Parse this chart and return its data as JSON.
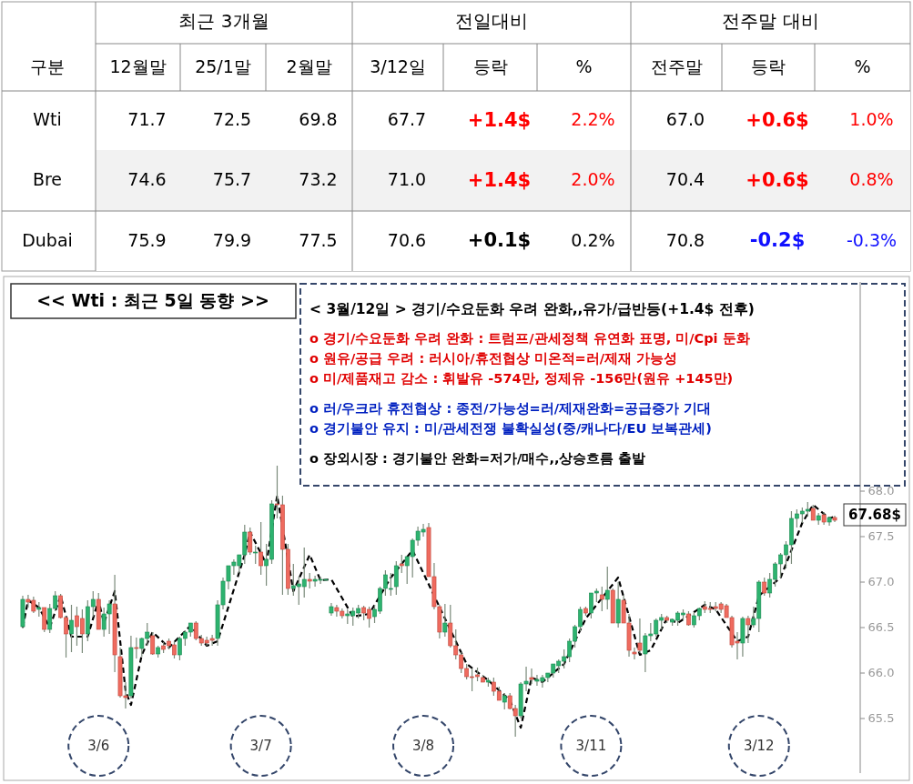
{
  "chart_data": [
    {
      "type": "heatmap",
      "annotations": [
        "구분",
        "최근 3개월",
        "전일대비",
        "전주말 대비"
      ],
      "categories": [
        "12월말",
        "25/1말",
        "2월말",
        "3/12일",
        "등락",
        "%",
        "전주말",
        "등락",
        "%"
      ],
      "y_categories": [
        "Wti",
        "Bre",
        "Dubai"
      ],
      "cells": [
        [
          71.7,
          72.5,
          69.8,
          67.7,
          1.4,
          2.2,
          67.0,
          0.6,
          1.0
        ],
        [
          74.6,
          75.7,
          73.2,
          71.0,
          1.4,
          2.0,
          70.4,
          0.6,
          0.8
        ],
        [
          75.9,
          79.9,
          77.5,
          70.6,
          0.1,
          0.2,
          70.8,
          -0.2,
          -0.3
        ]
      ],
      "cell_labels": [
        [
          "71.7",
          "72.5",
          "69.8",
          "67.7",
          "+1.4$",
          "2.2%",
          "67.0",
          "+0.6$",
          "1.0%"
        ],
        [
          "74.6",
          "75.7",
          "73.2",
          "71.0",
          "+1.4$",
          "2.0%",
          "70.4",
          "+0.6$",
          "0.8%"
        ],
        [
          "75.9",
          "79.9",
          "77.5",
          "70.6",
          "+0.1$",
          "0.2%",
          "70.8",
          "-0.2$",
          "-0.3%"
        ]
      ]
    },
    {
      "type": "candlestick",
      "title": "<< Wti : 최근 5일 동향 >>",
      "annotations": [
        "< 3월/12일 > 경기/수요둔화 우려 완화,,유가/급반등(+1.4$ 전후)",
        "o 경기/수요둔화 우려 완화 : 트럼프/관세정책 유연화 표명, 미/Cpi 둔화",
        "o 원유/공급 우려 : 러시아/휴전협상 미온적=러/제재 가능성",
        "o 미/제품재고 감소 : 휘발유 -574만, 정제유 -156만(원유 +145만)",
        "o 러/우크라 휴전협상 : 종전/가능성=러/제재완화=공급증가 기대",
        "o 경기불안 유지 : 미/관세전쟁 불확실성(중/캐나다/EU 보복관세)",
        "o 장외시장 : 경기불안 완화=저가/매수,,상승흐름 출발",
        "67.68$"
      ],
      "categories": [
        null,
        null,
        null,
        null,
        null,
        null,
        null,
        null,
        null,
        null,
        null,
        null,
        null,
        null,
        "3/6",
        null,
        null,
        null,
        null,
        null,
        null,
        null,
        null,
        null,
        null,
        null,
        null,
        null,
        null,
        null,
        null,
        null,
        null,
        null,
        null,
        null,
        null,
        null,
        null,
        null,
        null,
        null,
        null,
        null,
        "3/7",
        null,
        null,
        null,
        null,
        null,
        null,
        null,
        null,
        null,
        null,
        null,
        null,
        null,
        null,
        null,
        null,
        null,
        null,
        null,
        null,
        null,
        null,
        null,
        null,
        null,
        null,
        null,
        null,
        null,
        "3/8",
        null,
        null,
        null,
        null,
        null,
        null,
        null,
        null,
        null,
        null,
        null,
        null,
        null,
        null,
        null,
        null,
        null,
        null,
        null,
        null,
        null,
        null,
        null,
        null,
        null,
        null,
        null,
        null,
        null,
        null,
        "3/11",
        null,
        null,
        null,
        null,
        null,
        null,
        null,
        null,
        null,
        null,
        null,
        null,
        null,
        null,
        null,
        null,
        null,
        null,
        null,
        null,
        null,
        null,
        null,
        null,
        null,
        null,
        null,
        null,
        null,
        null,
        "3/12",
        null,
        null,
        null,
        null,
        null,
        null,
        null,
        null,
        null,
        null,
        null,
        null,
        null,
        null
      ],
      "ohlc": [
        [
          66.51,
          66.85,
          66.49,
          66.81
        ],
        [
          66.81,
          66.86,
          66.72,
          66.78
        ],
        [
          66.8,
          66.84,
          66.66,
          66.68
        ],
        [
          66.7,
          66.78,
          66.62,
          66.72
        ],
        [
          66.72,
          66.72,
          66.45,
          66.48
        ],
        [
          66.48,
          66.76,
          66.44,
          66.71
        ],
        [
          66.71,
          66.9,
          66.68,
          66.85
        ],
        [
          66.85,
          66.87,
          66.6,
          66.61
        ],
        [
          66.61,
          66.63,
          66.17,
          66.43
        ],
        [
          66.43,
          66.75,
          66.23,
          66.58
        ],
        [
          66.63,
          66.73,
          66.3,
          66.51
        ],
        [
          66.6,
          66.7,
          66.22,
          66.43
        ],
        [
          66.43,
          66.8,
          66.35,
          66.73
        ],
        [
          66.73,
          66.9,
          66.62,
          66.81
        ],
        [
          66.81,
          66.88,
          66.48,
          66.48
        ],
        [
          66.48,
          66.72,
          66.4,
          66.65
        ],
        [
          66.65,
          66.8,
          66.43,
          66.76
        ],
        [
          66.76,
          67.08,
          66.01,
          66.2
        ],
        [
          66.18,
          66.28,
          65.73,
          65.75
        ],
        [
          65.75,
          65.9,
          65.61,
          65.73
        ],
        [
          65.75,
          66.41,
          65.72,
          66.28
        ],
        [
          66.28,
          66.39,
          66.16,
          66.27
        ],
        [
          66.27,
          66.39,
          66.18,
          66.38
        ],
        [
          66.38,
          66.55,
          66.3,
          66.45
        ],
        [
          66.41,
          66.45,
          66.2,
          66.21
        ],
        [
          66.21,
          66.3,
          66.17,
          66.28
        ],
        [
          66.3,
          66.34,
          66.22,
          66.26
        ],
        [
          66.35,
          66.38,
          66.26,
          66.3
        ],
        [
          66.31,
          66.35,
          66.16,
          66.2
        ],
        [
          66.2,
          66.4,
          66.14,
          66.38
        ],
        [
          66.38,
          66.47,
          66.3,
          66.45
        ],
        [
          66.45,
          66.55,
          66.4,
          66.55
        ],
        [
          66.55,
          66.57,
          66.36,
          66.38
        ],
        [
          66.38,
          66.42,
          66.3,
          66.33
        ],
        [
          66.36,
          66.4,
          66.3,
          66.33
        ],
        [
          66.38,
          66.42,
          66.3,
          66.36
        ],
        [
          66.38,
          66.8,
          66.3,
          66.75
        ],
        [
          66.75,
          67.05,
          66.7,
          67.01
        ],
        [
          67.01,
          67.18,
          66.92,
          67.18
        ],
        [
          67.18,
          67.25,
          67.08,
          67.22
        ],
        [
          67.18,
          67.3,
          67.1,
          67.3
        ],
        [
          67.3,
          67.63,
          67.2,
          67.55
        ],
        [
          67.55,
          67.6,
          67.3,
          67.33
        ],
        [
          67.33,
          67.4,
          67.2,
          67.33
        ],
        [
          67.33,
          67.66,
          67.08,
          67.18
        ],
        [
          67.18,
          67.42,
          66.96,
          67.25
        ],
        [
          67.25,
          67.9,
          67.2,
          67.86
        ],
        [
          67.86,
          68.28,
          67.7,
          67.85
        ],
        [
          67.85,
          67.95,
          66.86,
          67.36
        ],
        [
          67.36,
          67.42,
          66.86,
          66.93
        ],
        [
          66.93,
          67.2,
          66.85,
          66.96
        ],
        [
          66.95,
          67.06,
          66.75,
          66.98
        ],
        [
          66.95,
          67.38,
          66.83,
          67.03
        ],
        [
          67.03,
          67.1,
          66.93,
          67.01
        ],
        [
          67.01,
          67.07,
          66.95,
          67.03
        ],
        [
          67.03,
          67.06,
          66.98,
          67.03
        ],
        [
          67.03,
          67.04,
          67.02,
          67.03
        ],
        [
          66.66,
          66.77,
          66.63,
          66.73
        ],
        [
          66.72,
          66.75,
          66.62,
          66.68
        ],
        [
          66.68,
          66.71,
          66.6,
          66.63
        ],
        [
          66.63,
          66.7,
          66.54,
          66.65
        ],
        [
          66.63,
          66.72,
          66.52,
          66.68
        ],
        [
          66.66,
          66.75,
          66.6,
          66.71
        ],
        [
          66.72,
          66.74,
          66.58,
          66.66
        ],
        [
          66.7,
          66.73,
          66.5,
          66.6
        ],
        [
          66.62,
          66.75,
          66.55,
          66.7
        ],
        [
          66.68,
          66.95,
          66.65,
          66.93
        ],
        [
          66.93,
          67.13,
          66.85,
          67.08
        ],
        [
          66.93,
          67.1,
          66.85,
          66.93
        ],
        [
          66.95,
          67.23,
          66.86,
          67.18
        ],
        [
          67.2,
          67.3,
          67.1,
          67.18
        ],
        [
          67.18,
          67.28,
          66.98,
          67.28
        ],
        [
          67.28,
          67.48,
          67.05,
          67.46
        ],
        [
          67.46,
          67.61,
          67.4,
          67.56
        ],
        [
          67.55,
          67.64,
          67.5,
          67.58
        ],
        [
          67.6,
          67.65,
          67.06,
          67.06
        ],
        [
          67.06,
          67.21,
          66.7,
          66.73
        ],
        [
          66.73,
          66.75,
          66.38,
          66.45
        ],
        [
          66.45,
          66.76,
          66.4,
          66.55
        ],
        [
          66.55,
          66.75,
          66.28,
          66.3
        ],
        [
          66.3,
          66.48,
          66.15,
          66.2
        ],
        [
          66.2,
          66.23,
          66.0,
          66.05
        ],
        [
          66.05,
          66.1,
          65.93,
          65.96
        ],
        [
          65.96,
          66.05,
          65.8,
          65.95
        ],
        [
          65.98,
          66.06,
          65.91,
          65.96
        ],
        [
          65.95,
          65.98,
          65.9,
          65.9
        ],
        [
          65.9,
          65.95,
          65.85,
          65.92
        ],
        [
          65.9,
          65.95,
          65.75,
          65.8
        ],
        [
          65.8,
          65.85,
          65.7,
          65.7
        ],
        [
          65.68,
          65.78,
          65.6,
          65.75
        ],
        [
          65.75,
          65.78,
          65.6,
          65.61
        ],
        [
          65.61,
          65.65,
          65.3,
          65.53
        ],
        [
          65.53,
          65.9,
          65.5,
          65.88
        ],
        [
          65.88,
          66.07,
          65.8,
          65.91
        ],
        [
          65.95,
          66.05,
          65.88,
          65.93
        ],
        [
          65.91,
          65.98,
          65.86,
          65.93
        ],
        [
          65.91,
          65.98,
          65.84,
          65.95
        ],
        [
          65.95,
          66.0,
          65.9,
          66.0
        ],
        [
          66.0,
          66.1,
          65.95,
          66.1
        ],
        [
          66.08,
          66.15,
          66.0,
          66.13
        ],
        [
          66.13,
          66.26,
          66.05,
          66.18
        ],
        [
          66.18,
          66.38,
          66.12,
          66.35
        ],
        [
          66.35,
          66.53,
          66.28,
          66.51
        ],
        [
          66.51,
          66.73,
          66.46,
          66.7
        ],
        [
          66.71,
          66.73,
          66.63,
          66.66
        ],
        [
          66.66,
          66.88,
          66.6,
          66.88
        ],
        [
          66.88,
          66.93,
          66.78,
          66.9
        ],
        [
          66.86,
          66.95,
          66.68,
          66.81
        ],
        [
          66.81,
          67.17,
          66.7,
          66.91
        ],
        [
          66.91,
          66.93,
          66.55,
          66.55
        ],
        [
          66.55,
          67.0,
          66.5,
          66.81
        ],
        [
          66.8,
          66.85,
          66.55,
          66.55
        ],
        [
          66.55,
          66.65,
          66.18,
          66.25
        ],
        [
          66.23,
          66.28,
          66.15,
          66.21
        ],
        [
          66.33,
          66.6,
          66.22,
          66.25
        ],
        [
          66.21,
          66.44,
          66.01,
          66.41
        ],
        [
          66.41,
          66.55,
          66.35,
          66.43
        ],
        [
          66.43,
          66.6,
          66.4,
          66.58
        ],
        [
          66.58,
          66.65,
          66.48,
          66.61
        ],
        [
          66.61,
          66.63,
          66.55,
          66.58
        ],
        [
          66.56,
          66.6,
          66.52,
          66.59
        ],
        [
          66.58,
          66.68,
          66.52,
          66.66
        ],
        [
          66.64,
          66.7,
          66.58,
          66.66
        ],
        [
          66.65,
          66.68,
          66.52,
          66.53
        ],
        [
          66.53,
          66.67,
          66.5,
          66.63
        ],
        [
          66.63,
          66.72,
          66.58,
          66.71
        ],
        [
          66.73,
          66.79,
          66.66,
          66.7
        ],
        [
          66.71,
          66.78,
          66.66,
          66.7
        ],
        [
          66.73,
          66.78,
          66.68,
          66.71
        ],
        [
          66.76,
          66.78,
          66.66,
          66.7
        ],
        [
          66.74,
          66.76,
          66.61,
          66.61
        ],
        [
          66.61,
          66.63,
          66.28,
          66.31
        ],
        [
          66.35,
          66.45,
          66.15,
          66.33
        ],
        [
          66.33,
          66.62,
          66.18,
          66.6
        ],
        [
          66.6,
          66.63,
          66.33,
          66.53
        ],
        [
          66.53,
          66.73,
          66.5,
          66.6
        ],
        [
          66.6,
          67.02,
          66.45,
          67.0
        ],
        [
          67.0,
          67.05,
          66.85,
          66.88
        ],
        [
          66.88,
          67.1,
          66.83,
          67.03
        ],
        [
          67.03,
          67.22,
          66.95,
          67.2
        ],
        [
          67.2,
          67.32,
          67.05,
          67.3
        ],
        [
          67.3,
          67.45,
          67.15,
          67.41
        ],
        [
          67.41,
          67.78,
          67.2,
          67.7
        ],
        [
          67.7,
          67.8,
          67.6,
          67.75
        ],
        [
          67.75,
          67.82,
          67.65,
          67.78
        ],
        [
          67.78,
          67.88,
          67.72,
          67.8
        ],
        [
          67.81,
          67.85,
          67.68,
          67.68
        ],
        [
          67.68,
          67.76,
          67.63,
          67.73
        ],
        [
          67.74,
          67.77,
          67.63,
          67.66
        ],
        [
          67.66,
          67.72,
          67.62,
          67.71
        ],
        [
          67.71,
          67.73,
          67.66,
          67.68
        ]
      ],
      "series": [
        {
          "type": "line",
          "color": "#000000",
          "line_style": "dashed",
          "values": [
            66.5,
            66.8,
            null,
            66.72,
            null,
            66.5,
            null,
            66.85,
            null,
            66.4,
            null,
            null,
            66.4,
            null,
            66.8,
            66.55,
            null,
            66.9,
            null,
            65.8,
            65.65,
            null,
            66.2,
            null,
            66.45,
            null,
            null,
            66.28,
            null,
            null,
            null,
            66.52,
            null,
            null,
            66.3,
            null,
            66.35,
            null,
            null,
            null,
            null,
            67.3,
            67.55,
            null,
            null,
            67.2,
            null,
            67.95,
            null,
            null,
            66.9,
            null,
            null,
            67.3,
            null,
            67.02,
            null,
            67.03,
            null,
            null,
            null,
            66.62,
            null,
            null,
            66.65,
            null,
            null,
            null,
            67.05,
            null,
            null,
            null,
            67.35,
            null,
            null,
            null,
            null,
            null,
            66.6,
            null,
            null,
            null,
            66.1,
            null,
            null,
            null,
            65.92,
            null,
            null,
            null,
            65.7,
            null,
            65.4,
            null,
            65.95,
            null,
            65.9,
            null,
            null,
            null,
            66.1,
            null,
            null,
            null,
            66.6,
            null,
            null,
            null,
            66.9,
            null,
            67.05,
            null,
            null,
            null,
            66.2,
            null,
            66.25,
            null,
            null,
            66.6,
            null,
            66.55,
            null,
            null,
            null,
            null,
            66.75,
            null,
            66.7,
            null,
            null,
            null,
            66.35,
            null,
            66.4,
            null,
            66.85,
            null,
            null,
            null,
            67.05,
            null,
            null,
            null,
            67.65,
            null,
            67.85,
            null,
            null,
            67.7,
            67.72
          ]
        }
      ],
      "ylim": [
        64.9,
        70.3
      ],
      "yticks": [
        65.5,
        {
          "value": 66,
          "label": "66.0"
        },
        66.5,
        {
          "value": 67,
          "label": "67.0"
        },
        67.5,
        {
          "value": 68,
          "label": "68.0"
        }
      ]
    }
  ]
}
